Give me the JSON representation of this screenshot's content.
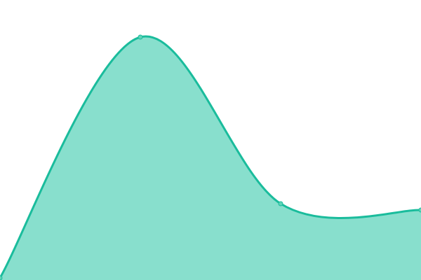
{
  "chart_data": {
    "type": "area",
    "x": [
      0,
      1,
      2,
      3
    ],
    "values": [
      3,
      347,
      109,
      100
    ],
    "ylim": [
      0,
      400
    ],
    "grid": false,
    "curve": "smooth",
    "colors": {
      "line": "#1abc9c",
      "fill": "#88dfcd",
      "point": "#5fd3b8"
    }
  }
}
